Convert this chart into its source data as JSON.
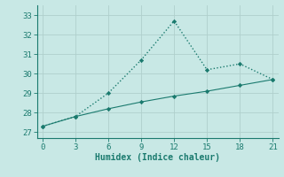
{
  "x": [
    0,
    3,
    6,
    9,
    12,
    15,
    18,
    21
  ],
  "line1_y": [
    27.3,
    27.8,
    29.0,
    30.7,
    32.7,
    30.2,
    30.5,
    29.7
  ],
  "line2_y": [
    27.3,
    27.8,
    28.2,
    28.55,
    28.85,
    29.1,
    29.4,
    29.7
  ],
  "line_color": "#1a7a6e",
  "bg_color": "#c8e8e5",
  "grid_color": "#b0d0cc",
  "xlabel": "Humidex (Indice chaleur)",
  "xlim": [
    -0.5,
    21.5
  ],
  "ylim": [
    26.7,
    33.5
  ],
  "yticks": [
    27,
    28,
    29,
    30,
    31,
    32,
    33
  ],
  "xticks": [
    0,
    3,
    6,
    9,
    12,
    15,
    18,
    21
  ]
}
